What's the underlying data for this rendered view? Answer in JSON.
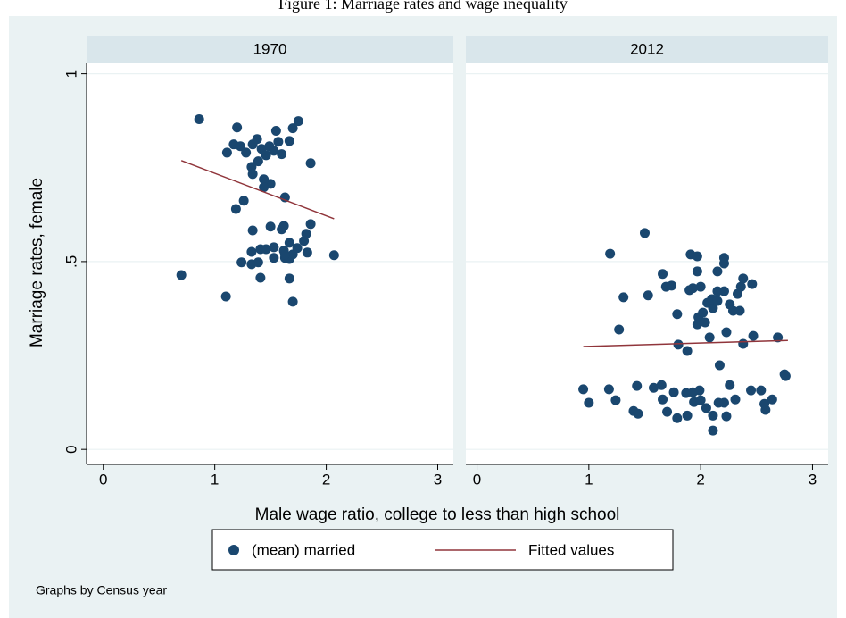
{
  "title": "Figure 1: Marriage rates and wage inequality",
  "ylabel": "Marriage rates, female",
  "xlabel": "Male wage ratio, college to less than high school",
  "note": "Graphs by Census year",
  "chart_data": [
    {
      "type": "scatter",
      "title": "1970",
      "xlim": [
        -0.15,
        3.14
      ],
      "ylim": [
        -0.04,
        1.03
      ],
      "xticks": [
        0,
        1,
        2,
        3
      ],
      "yticks": [
        0,
        {
          "value": 0.5,
          "label": ".5"
        },
        1
      ],
      "grid": true,
      "series": [
        {
          "name": "(mean) married",
          "type": "scatter",
          "color": "#1a476f",
          "x": [
            0.86,
            1.2,
            0.7,
            1.1,
            1.7,
            1.41,
            1.67,
            2.07,
            1.86,
            1.86,
            1.75,
            1.7,
            1.67,
            1.63,
            1.5,
            1.19,
            1.26,
            1.44,
            1.44,
            1.11,
            1.17,
            1.23,
            1.28,
            1.34,
            1.38,
            1.42,
            1.46,
            1.49,
            1.53,
            1.55,
            1.6,
            1.57,
            1.33,
            1.39,
            1.34,
            1.24,
            1.33,
            1.33,
            1.39,
            1.41,
            1.46,
            1.5,
            1.53,
            1.53,
            1.6,
            1.62,
            1.62,
            1.63,
            1.67,
            1.67,
            1.7,
            1.74,
            1.8,
            1.82,
            1.83,
            1.34,
            1.63
          ],
          "values": [
            0.879,
            0.857,
            0.464,
            0.407,
            0.393,
            0.457,
            0.455,
            0.517,
            0.6,
            0.762,
            0.874,
            0.855,
            0.821,
            0.671,
            0.707,
            0.64,
            0.662,
            0.719,
            0.698,
            0.79,
            0.812,
            0.807,
            0.79,
            0.812,
            0.826,
            0.8,
            0.783,
            0.807,
            0.795,
            0.848,
            0.786,
            0.819,
            0.752,
            0.767,
            0.733,
            0.498,
            0.493,
            0.526,
            0.498,
            0.533,
            0.533,
            0.593,
            0.51,
            0.538,
            0.586,
            0.595,
            0.529,
            0.51,
            0.507,
            0.55,
            0.519,
            0.536,
            0.555,
            0.574,
            0.524,
            0.583,
            0.519
          ]
        },
        {
          "name": "Fitted values",
          "type": "line",
          "color": "#90353b",
          "x": [
            0.7,
            2.07
          ],
          "values": [
            0.769,
            0.614
          ]
        }
      ]
    },
    {
      "type": "scatter",
      "title": "2012",
      "xlim": [
        -0.1,
        3.14
      ],
      "ylim": [
        -0.04,
        1.03
      ],
      "xticks": [
        0,
        1,
        2,
        3
      ],
      "yticks": [
        0,
        {
          "value": 0.5,
          "label": ".5"
        },
        1
      ],
      "grid": true,
      "series": [
        {
          "name": "(mean) married",
          "type": "scatter",
          "color": "#1a476f",
          "x": [
            1.19,
            1.5,
            1.31,
            1.27,
            1.53,
            1.66,
            1.69,
            1.74,
            1.91,
            1.97,
            1.97,
            2.0,
            1.93,
            1.9,
            1.98,
            1.97,
            1.79,
            1.8,
            1.88,
            2.08,
            2.04,
            2.02,
            2.06,
            2.11,
            2.1,
            2.15,
            2.15,
            2.15,
            2.21,
            2.21,
            2.21,
            2.26,
            2.29,
            2.35,
            2.33,
            2.36,
            2.38,
            2.46,
            2.47,
            2.38,
            2.69,
            2.23,
            2.17,
            2.76,
            2.75,
            1.18,
            1.0,
            1.24,
            1.43,
            1.58,
            1.65,
            1.4,
            1.44,
            1.66,
            1.7,
            1.76,
            1.79,
            1.87,
            1.88,
            1.93,
            1.94,
            1.99,
            2.0,
            2.05,
            2.11,
            2.11,
            2.16,
            2.21,
            2.23,
            2.26,
            2.31,
            2.45,
            2.54,
            2.57,
            2.58,
            2.64,
            0.95
          ],
          "values": [
            0.521,
            0.576,
            0.405,
            0.319,
            0.41,
            0.467,
            0.433,
            0.436,
            0.519,
            0.514,
            0.474,
            0.433,
            0.429,
            0.424,
            0.352,
            0.333,
            0.36,
            0.279,
            0.262,
            0.298,
            0.338,
            0.364,
            0.39,
            0.376,
            0.4,
            0.421,
            0.474,
            0.395,
            0.421,
            0.495,
            0.51,
            0.386,
            0.369,
            0.369,
            0.414,
            0.433,
            0.455,
            0.44,
            0.302,
            0.281,
            0.298,
            0.312,
            0.224,
            0.195,
            0.2,
            0.16,
            0.124,
            0.131,
            0.169,
            0.164,
            0.171,
            0.102,
            0.095,
            0.133,
            0.1,
            0.152,
            0.083,
            0.15,
            0.09,
            0.152,
            0.126,
            0.157,
            0.131,
            0.11,
            0.09,
            0.05,
            0.124,
            0.124,
            0.088,
            0.171,
            0.133,
            0.157,
            0.157,
            0.121,
            0.105,
            0.133,
            0.16
          ]
        },
        {
          "name": "Fitted values",
          "type": "line",
          "color": "#90353b",
          "x": [
            0.95,
            2.78
          ],
          "values": [
            0.274,
            0.29
          ]
        }
      ]
    }
  ]
}
